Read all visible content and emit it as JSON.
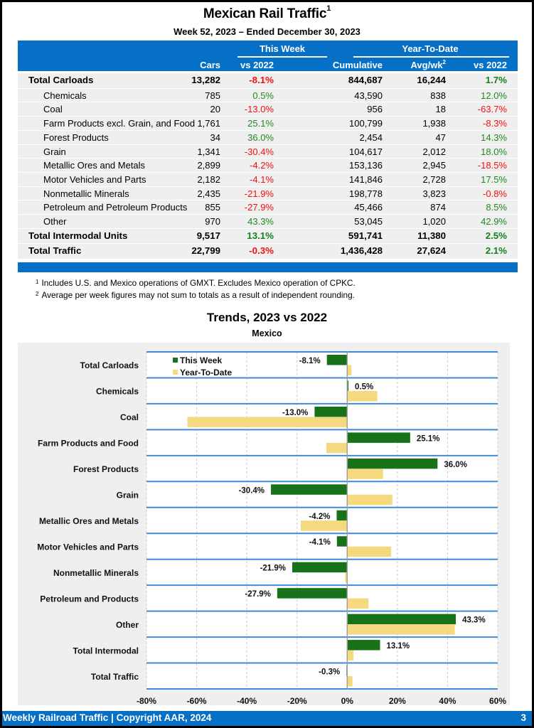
{
  "header": {
    "title": "Mexican Rail Traffic",
    "title_footnote": "1",
    "subtitle": "Week 52, 2023 – Ended December 30, 2023"
  },
  "table": {
    "group_headers": {
      "this_week": "This Week",
      "ytd": "Year-To-Date"
    },
    "columns": [
      "Cars",
      "vs 2022",
      "Cumulative",
      "Avg/wk",
      "vs 2022"
    ],
    "avg_footnote": "2",
    "rows": [
      {
        "label": "Total Carloads",
        "type": "total",
        "cars": "13,282",
        "cars_vs": "-8.1%",
        "cum": "844,687",
        "avg": "16,244",
        "ytd_vs": "1.7%"
      },
      {
        "label": "Chemicals",
        "type": "sub",
        "cars": "785",
        "cars_vs": "0.5%",
        "cum": "43,590",
        "avg": "838",
        "ytd_vs": "12.0%"
      },
      {
        "label": "Coal",
        "type": "sub",
        "cars": "20",
        "cars_vs": "-13.0%",
        "cum": "956",
        "avg": "18",
        "ytd_vs": "-63.7%"
      },
      {
        "label": "Farm Products excl. Grain, and Food",
        "type": "sub",
        "cars": "1,761",
        "cars_vs": "25.1%",
        "cum": "100,799",
        "avg": "1,938",
        "ytd_vs": "-8.3%"
      },
      {
        "label": "Forest Products",
        "type": "sub",
        "cars": "34",
        "cars_vs": "36.0%",
        "cum": "2,454",
        "avg": "47",
        "ytd_vs": "14.3%"
      },
      {
        "label": "Grain",
        "type": "sub",
        "cars": "1,341",
        "cars_vs": "-30.4%",
        "cum": "104,617",
        "avg": "2,012",
        "ytd_vs": "18.0%"
      },
      {
        "label": "Metallic Ores and Metals",
        "type": "sub",
        "cars": "2,899",
        "cars_vs": "-4.2%",
        "cum": "153,136",
        "avg": "2,945",
        "ytd_vs": "-18.5%"
      },
      {
        "label": "Motor Vehicles and Parts",
        "type": "sub",
        "cars": "2,182",
        "cars_vs": "-4.1%",
        "cum": "141,846",
        "avg": "2,728",
        "ytd_vs": "17.5%"
      },
      {
        "label": "Nonmetallic Minerals",
        "type": "sub",
        "cars": "2,435",
        "cars_vs": "-21.9%",
        "cum": "198,778",
        "avg": "3,823",
        "ytd_vs": "-0.8%"
      },
      {
        "label": "Petroleum and Petroleum Products",
        "type": "sub",
        "cars": "855",
        "cars_vs": "-27.9%",
        "cum": "45,466",
        "avg": "874",
        "ytd_vs": "8.5%"
      },
      {
        "label": "Other",
        "type": "sub",
        "cars": "970",
        "cars_vs": "43.3%",
        "cum": "53,045",
        "avg": "1,020",
        "ytd_vs": "42.9%"
      },
      {
        "label": "Total Intermodal Units",
        "type": "total",
        "cars": "9,517",
        "cars_vs": "13.1%",
        "cum": "591,741",
        "avg": "11,380",
        "ytd_vs": "2.5%"
      },
      {
        "label": "Total Traffic",
        "type": "total",
        "cars": "22,799",
        "cars_vs": "-0.3%",
        "cum": "1,436,428",
        "avg": "27,624",
        "ytd_vs": "2.1%"
      }
    ]
  },
  "notes": [
    {
      "mark": "1",
      "text": "Includes U.S. and Mexico operations of GMXT. Excludes Mexico operation of CPKC."
    },
    {
      "mark": "2",
      "text": "Average per week figures may not sum to totals as a result of independent rounding."
    }
  ],
  "colors": {
    "brand_blue": "#0570c6",
    "positive": "#1e8a1e",
    "negative": "#f50f0f",
    "this_week_bar": "#177219",
    "ytd_bar": "#f4d97e",
    "separator": "#3d8bd9"
  },
  "chart_data": {
    "type": "bar",
    "orientation": "horizontal",
    "title": "Trends, 2023 vs 2022",
    "subtitle": "Mexico",
    "xlabel": "",
    "ylabel": "",
    "xlim": [
      -80,
      60
    ],
    "x_ticks": [
      -80,
      -60,
      -40,
      -20,
      0,
      20,
      40,
      60
    ],
    "x_tick_labels": [
      "-80%",
      "-60%",
      "-40%",
      "-20%",
      "0%",
      "20%",
      "40%",
      "60%"
    ],
    "grid": "vertical dashed",
    "legend": {
      "placement": "top-left",
      "entries": [
        "This Week",
        "Year-To-Date"
      ]
    },
    "categories": [
      "Total Carloads",
      "Chemicals",
      "Coal",
      "Farm Products and Food",
      "Forest Products",
      "Grain",
      "Metallic Ores and Metals",
      "Motor Vehicles and Parts",
      "Nonmetallic Minerals",
      "Petroleum and Products",
      "Other",
      "Total Intermodal",
      "Total Traffic"
    ],
    "series": [
      {
        "name": "This Week",
        "values": [
          -8.1,
          0.5,
          -13.0,
          25.1,
          36.0,
          -30.4,
          -4.2,
          -4.1,
          -21.9,
          -27.9,
          43.3,
          13.1,
          -0.3
        ],
        "labels": [
          "-8.1%",
          "0.5%",
          "-13.0%",
          "25.1%",
          "36.0%",
          "-30.4%",
          "-4.2%",
          "-4.1%",
          "-21.9%",
          "-27.9%",
          "43.3%",
          "13.1%",
          "-0.3%"
        ]
      },
      {
        "name": "Year-To-Date",
        "values": [
          1.7,
          12.0,
          -63.7,
          -8.3,
          14.3,
          18.0,
          -18.5,
          17.5,
          -0.8,
          8.5,
          42.9,
          2.5,
          2.1
        ]
      }
    ]
  },
  "footer": {
    "text": "Weekly Railroad Traffic | Copyright AAR, 2024",
    "page": "3"
  }
}
